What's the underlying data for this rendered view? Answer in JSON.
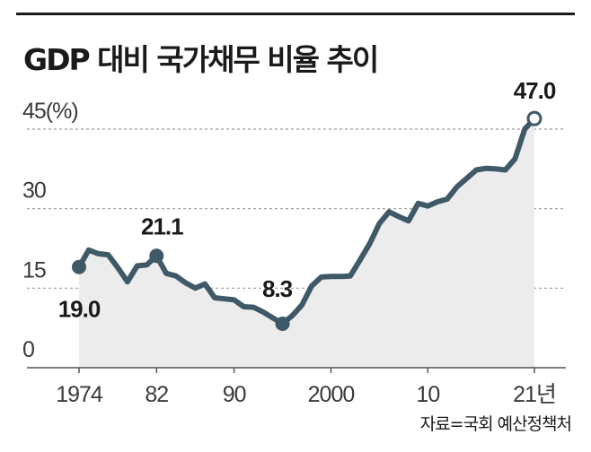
{
  "chart_data": {
    "type": "area",
    "title": "GDP 대비 국가채무 비율 추이",
    "ylabel": "(%)",
    "ylim": [
      0,
      50
    ],
    "yticks": [
      {
        "value": 45,
        "label": "45(%)"
      },
      {
        "value": 30,
        "label": "30"
      },
      {
        "value": 15,
        "label": "15"
      },
      {
        "value": 0,
        "label": "0"
      }
    ],
    "xticks": [
      {
        "value": 1974,
        "label": "1974"
      },
      {
        "value": 1982,
        "label": "82"
      },
      {
        "value": 1990,
        "label": "90"
      },
      {
        "value": 2000,
        "label": "2000"
      },
      {
        "value": 2010,
        "label": "10"
      },
      {
        "value": 2021,
        "label": "21년"
      }
    ],
    "x": [
      1974,
      1975,
      1976,
      1977,
      1978,
      1979,
      1980,
      1981,
      1982,
      1983,
      1984,
      1985,
      1986,
      1987,
      1988,
      1989,
      1990,
      1991,
      1992,
      1993,
      1994,
      1995,
      1996,
      1997,
      1998,
      1999,
      2000,
      2001,
      2002,
      2003,
      2004,
      2005,
      2006,
      2007,
      2008,
      2009,
      2010,
      2011,
      2012,
      2013,
      2014,
      2015,
      2016,
      2017,
      2018,
      2019,
      2020,
      2021
    ],
    "values": [
      19.0,
      22.2,
      21.5,
      21.3,
      18.9,
      16.2,
      19.2,
      19.4,
      21.1,
      17.8,
      17.3,
      16.0,
      15.0,
      15.8,
      13.2,
      13.0,
      12.8,
      11.5,
      11.4,
      10.5,
      9.4,
      8.3,
      9.8,
      11.8,
      15.4,
      17.1,
      17.2,
      17.2,
      17.3,
      20.3,
      23.4,
      27.2,
      29.4,
      28.5,
      27.7,
      31.0,
      30.5,
      31.3,
      31.8,
      34.1,
      35.7,
      37.3,
      37.6,
      37.5,
      37.3,
      39.4,
      45.0,
      47.0
    ],
    "annotations": [
      {
        "x": 1974,
        "value": 19.0,
        "label": "19.0"
      },
      {
        "x": 1982,
        "value": 21.1,
        "label": "21.1"
      },
      {
        "x": 1995,
        "value": 8.3,
        "label": "8.3"
      },
      {
        "x": 2021,
        "value": 47.0,
        "label": "47.0"
      }
    ],
    "grid": true
  },
  "source": "자료=국회 예산정책처",
  "colors": {
    "line": "#3f5968",
    "area": "#ececec",
    "grid": "#9a9a9a",
    "text": "#1a1a1a"
  }
}
